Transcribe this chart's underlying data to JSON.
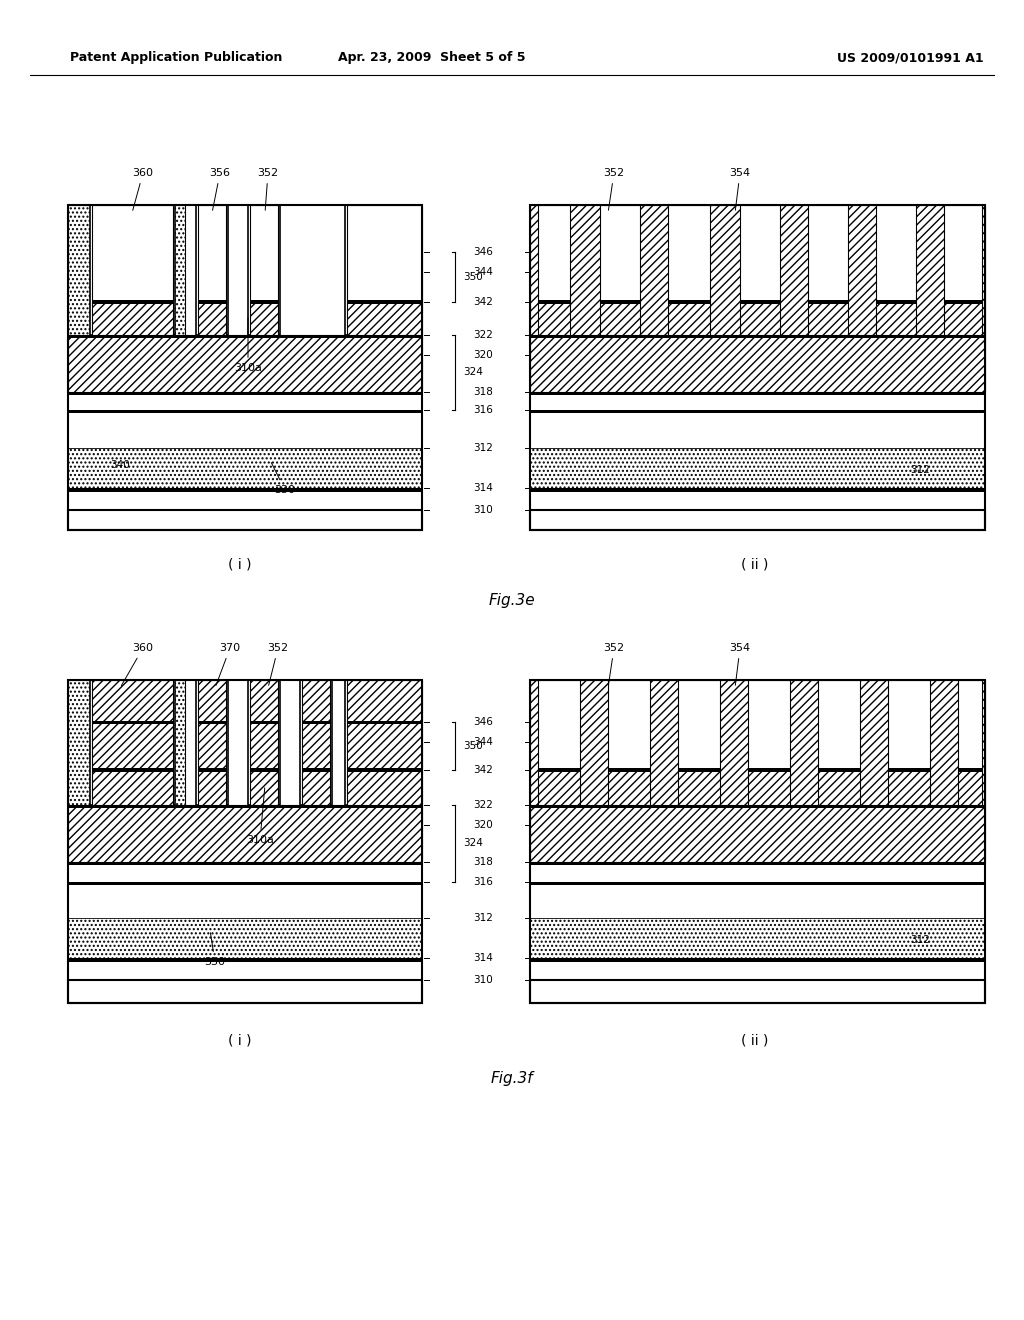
{
  "header_left": "Patent Application Publication",
  "header_mid": "Apr. 23, 2009  Sheet 5 of 5",
  "header_right": "US 2009/0101991 A1",
  "fig3e_label": "Fig.3e",
  "fig3f_label": "Fig.3f",
  "sub_i": "( i )",
  "sub_ii": "( ii )",
  "bg_color": "#ffffff"
}
